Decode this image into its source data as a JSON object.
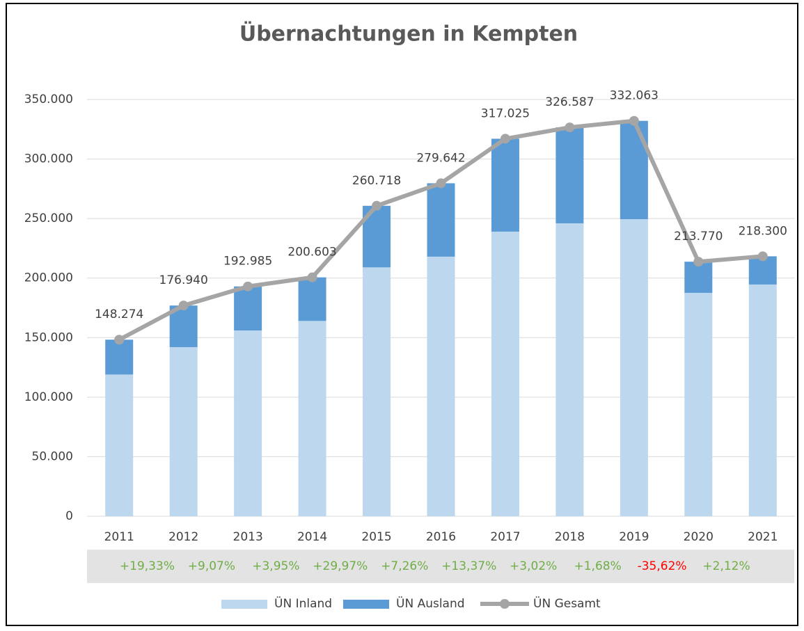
{
  "chart_data": {
    "type": "stacked_bar_line",
    "title": "Übernachtungen in Kempten",
    "categories": [
      "2011",
      "2012",
      "2013",
      "2014",
      "2015",
      "2016",
      "2017",
      "2018",
      "2019",
      "2020",
      "2021"
    ],
    "series": [
      {
        "name": "ÜN Inland",
        "type": "bar",
        "color": "#bdd7ee",
        "values": [
          119000,
          142000,
          156000,
          164000,
          209000,
          218000,
          239000,
          246000,
          249500,
          187600,
          194600
        ]
      },
      {
        "name": "ÜN Ausland",
        "type": "bar",
        "color": "#5b9bd5",
        "values": [
          29274,
          34940,
          36985,
          36603,
          51718,
          61642,
          78025,
          80587,
          82563,
          26170,
          23700
        ]
      },
      {
        "name": "ÜN Gesamt",
        "type": "line",
        "color": "#a5a5a5",
        "values": [
          148274,
          176940,
          192985,
          200603,
          260718,
          279642,
          317025,
          326587,
          332063,
          213770,
          218300
        ],
        "value_labels": [
          "148.274",
          "176.940",
          "192.985",
          "200.603",
          "260.718",
          "279.642",
          "317.025",
          "326.587",
          "332.063",
          "213.770",
          "218.300"
        ]
      }
    ],
    "ylim": [
      0,
      350000
    ],
    "yticks": [
      0,
      {
        "value": 50000,
        "label": "50.000"
      },
      {
        "value": 100000,
        "label": "100.000"
      },
      {
        "value": 150000,
        "label": "150.000"
      },
      {
        "value": 200000,
        "label": "200.000"
      },
      {
        "value": 250000,
        "label": "250.000"
      },
      {
        "value": 300000,
        "label": "300.000"
      },
      {
        "value": 350000,
        "label": "350.000"
      }
    ],
    "grid": true,
    "legend": "bottom",
    "annotations": [
      {
        "text": "+19,33%",
        "color": "#70ad47"
      },
      {
        "text": "+9,07%",
        "color": "#70ad47"
      },
      {
        "text": "+3,95%",
        "color": "#70ad47"
      },
      {
        "text": "+29,97%",
        "color": "#70ad47"
      },
      {
        "text": "+7,26%",
        "color": "#70ad47"
      },
      {
        "text": "+13,37%",
        "color": "#70ad47"
      },
      {
        "text": "+3,02%",
        "color": "#70ad47"
      },
      {
        "text": "+1,68%",
        "color": "#70ad47"
      },
      {
        "text": "-35,62%",
        "color": "#ff0000"
      },
      {
        "text": "+2,12%",
        "color": "#70ad47"
      }
    ]
  }
}
